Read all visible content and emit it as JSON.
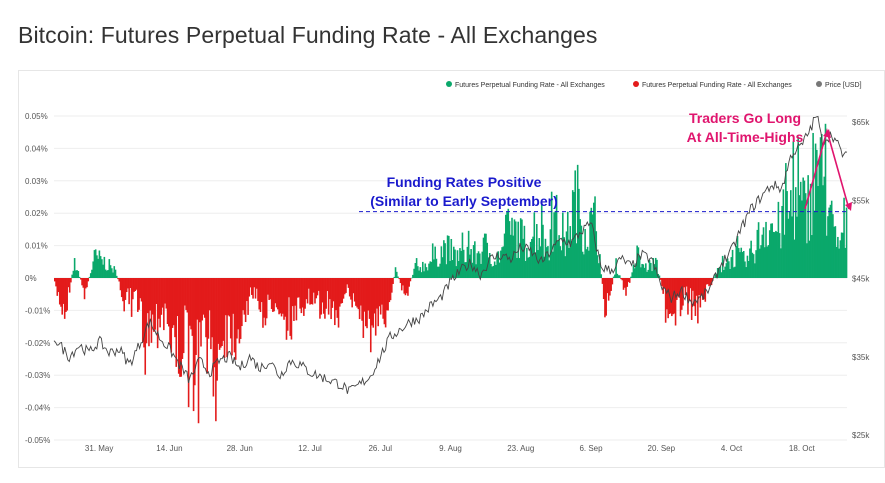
{
  "page": {
    "title": "Bitcoin: Futures Perpetual Funding Rate - All Exchanges"
  },
  "colors": {
    "positive": "#0aa86b",
    "negative": "#e31b1b",
    "price": "#444444",
    "annotation_blue": "#1a1acd",
    "annotation_pink": "#e0156e",
    "grid": "#eeeeee"
  },
  "chart_data": {
    "type": "bar",
    "legend": {
      "placement": "top-right",
      "items": [
        {
          "label": "Futures Perpetual Funding Rate - All Exchanges",
          "color": "#0aa86b"
        },
        {
          "label": "Futures Perpetual Funding Rate - All Exchanges",
          "color": "#e31b1b"
        },
        {
          "label": "Price [USD]",
          "color": "#777777"
        }
      ]
    },
    "y_left": {
      "ticks": [
        "0.05%",
        "0.04%",
        "0.03%",
        "0.02%",
        "0.01%",
        "0%",
        "-0.01%",
        "-0.02%",
        "-0.03%",
        "-0.04%",
        "-0.05%"
      ],
      "values": [
        0.05,
        0.04,
        0.03,
        0.02,
        0.01,
        0,
        -0.01,
        -0.02,
        -0.03,
        -0.04,
        -0.05
      ],
      "ylim": [
        -0.05,
        0.05
      ]
    },
    "y_right": {
      "ticks": [
        "$65k",
        "$55k",
        "$45k",
        "$35k",
        "$25k"
      ],
      "values": [
        65000,
        55000,
        45000,
        35000,
        25000
      ],
      "ylim": [
        25000,
        66000
      ]
    },
    "x_ticks": [
      "31. May",
      "14. Jun",
      "28. Jun",
      "12. Jul",
      "26. Jul",
      "9. Aug",
      "23. Aug",
      "6. Sep",
      "20. Sep",
      "4. Oct",
      "18. Oct"
    ],
    "x_tick_days": [
      9,
      23,
      37,
      51,
      65,
      79,
      93,
      107,
      121,
      135,
      149
    ],
    "days": 159,
    "funding_anchors": [
      [
        0,
        -0.003
      ],
      [
        2,
        -0.013
      ],
      [
        4,
        0.006
      ],
      [
        6,
        -0.006
      ],
      [
        8,
        0.008
      ],
      [
        10,
        0.006
      ],
      [
        12,
        0.003
      ],
      [
        14,
        -0.01
      ],
      [
        16,
        -0.007
      ],
      [
        18,
        -0.02
      ],
      [
        20,
        -0.016
      ],
      [
        22,
        -0.01
      ],
      [
        24,
        -0.03
      ],
      [
        26,
        -0.022
      ],
      [
        28,
        -0.035
      ],
      [
        30,
        -0.02
      ],
      [
        32,
        -0.038
      ],
      [
        34,
        -0.015
      ],
      [
        36,
        -0.022
      ],
      [
        38,
        -0.012
      ],
      [
        40,
        -0.005
      ],
      [
        42,
        -0.015
      ],
      [
        44,
        -0.008
      ],
      [
        46,
        -0.012
      ],
      [
        48,
        -0.018
      ],
      [
        50,
        -0.006
      ],
      [
        52,
        -0.012
      ],
      [
        54,
        -0.01
      ],
      [
        56,
        -0.013
      ],
      [
        58,
        -0.004
      ],
      [
        60,
        -0.01
      ],
      [
        62,
        -0.017
      ],
      [
        64,
        -0.023
      ],
      [
        66,
        -0.015
      ],
      [
        68,
        0.003
      ],
      [
        70,
        -0.006
      ],
      [
        72,
        0.004
      ],
      [
        74,
        0.005
      ],
      [
        76,
        0.008
      ],
      [
        78,
        0.012
      ],
      [
        80,
        0.008
      ],
      [
        82,
        0.01
      ],
      [
        84,
        0.009
      ],
      [
        86,
        0.012
      ],
      [
        88,
        0.007
      ],
      [
        90,
        0.013
      ],
      [
        92,
        0.018
      ],
      [
        94,
        0.013
      ],
      [
        96,
        0.02
      ],
      [
        98,
        0.012
      ],
      [
        100,
        0.022
      ],
      [
        102,
        0.014
      ],
      [
        104,
        0.031
      ],
      [
        106,
        0.018
      ],
      [
        108,
        0.022
      ],
      [
        110,
        -0.014
      ],
      [
        112,
        0.005
      ],
      [
        114,
        -0.006
      ],
      [
        116,
        0.007
      ],
      [
        118,
        0.004
      ],
      [
        120,
        0.006
      ],
      [
        122,
        -0.01
      ],
      [
        124,
        -0.013
      ],
      [
        126,
        -0.007
      ],
      [
        128,
        -0.01
      ],
      [
        130,
        -0.006
      ],
      [
        132,
        0.002
      ],
      [
        134,
        0.006
      ],
      [
        136,
        0.009
      ],
      [
        138,
        0.006
      ],
      [
        140,
        0.013
      ],
      [
        142,
        0.022
      ],
      [
        144,
        0.018
      ],
      [
        146,
        0.024
      ],
      [
        148,
        0.03
      ],
      [
        150,
        0.025
      ],
      [
        152,
        0.047
      ],
      [
        154,
        0.03
      ],
      [
        156,
        0.012
      ],
      [
        158,
        0.018
      ]
    ],
    "price_anchors": [
      [
        0,
        37500
      ],
      [
        3,
        35000
      ],
      [
        5,
        36500
      ],
      [
        7,
        35500
      ],
      [
        9,
        37000
      ],
      [
        11,
        35500
      ],
      [
        13,
        36000
      ],
      [
        15,
        34000
      ],
      [
        17,
        36500
      ],
      [
        19,
        39500
      ],
      [
        21,
        37500
      ],
      [
        23,
        36000
      ],
      [
        25,
        34000
      ],
      [
        27,
        32000
      ],
      [
        29,
        34500
      ],
      [
        31,
        33000
      ],
      [
        33,
        34500
      ],
      [
        35,
        35000
      ],
      [
        37,
        33500
      ],
      [
        39,
        35000
      ],
      [
        41,
        33500
      ],
      [
        43,
        34500
      ],
      [
        45,
        32500
      ],
      [
        47,
        34500
      ],
      [
        49,
        34000
      ],
      [
        51,
        33000
      ],
      [
        53,
        32500
      ],
      [
        55,
        32000
      ],
      [
        57,
        31500
      ],
      [
        59,
        30500
      ],
      [
        61,
        31500
      ],
      [
        63,
        32500
      ],
      [
        65,
        35000
      ],
      [
        67,
        37500
      ],
      [
        69,
        38500
      ],
      [
        71,
        39500
      ],
      [
        73,
        40000
      ],
      [
        75,
        41500
      ],
      [
        77,
        42500
      ],
      [
        79,
        44500
      ],
      [
        81,
        46000
      ],
      [
        83,
        47000
      ],
      [
        85,
        45500
      ],
      [
        87,
        47500
      ],
      [
        89,
        48000
      ],
      [
        91,
        47500
      ],
      [
        93,
        49000
      ],
      [
        95,
        48500
      ],
      [
        97,
        47000
      ],
      [
        99,
        48500
      ],
      [
        101,
        50000
      ],
      [
        103,
        49500
      ],
      [
        105,
        51000
      ],
      [
        107,
        52000
      ],
      [
        109,
        46500
      ],
      [
        111,
        46000
      ],
      [
        113,
        47500
      ],
      [
        115,
        46500
      ],
      [
        117,
        48000
      ],
      [
        119,
        47500
      ],
      [
        121,
        44000
      ],
      [
        123,
        42500
      ],
      [
        125,
        43500
      ],
      [
        127,
        42000
      ],
      [
        129,
        42500
      ],
      [
        131,
        44000
      ],
      [
        133,
        47000
      ],
      [
        135,
        48500
      ],
      [
        137,
        51500
      ],
      [
        139,
        54000
      ],
      [
        141,
        55500
      ],
      [
        143,
        57000
      ],
      [
        145,
        56500
      ],
      [
        147,
        61000
      ],
      [
        149,
        62000
      ],
      [
        151,
        64500
      ],
      [
        152,
        66000
      ],
      [
        153,
        62500
      ],
      [
        155,
        63500
      ],
      [
        157,
        61000
      ],
      [
        158,
        60500
      ]
    ],
    "funding_label_positions": "zero-line at left axis",
    "reference_level": 0.0205
  },
  "annotations": {
    "funding_line1": "Funding Rates Positive",
    "funding_line2": "(Similar to Early September)",
    "traders_line1": "Traders Go Long",
    "traders_line2": "At All-Time-Highs"
  }
}
